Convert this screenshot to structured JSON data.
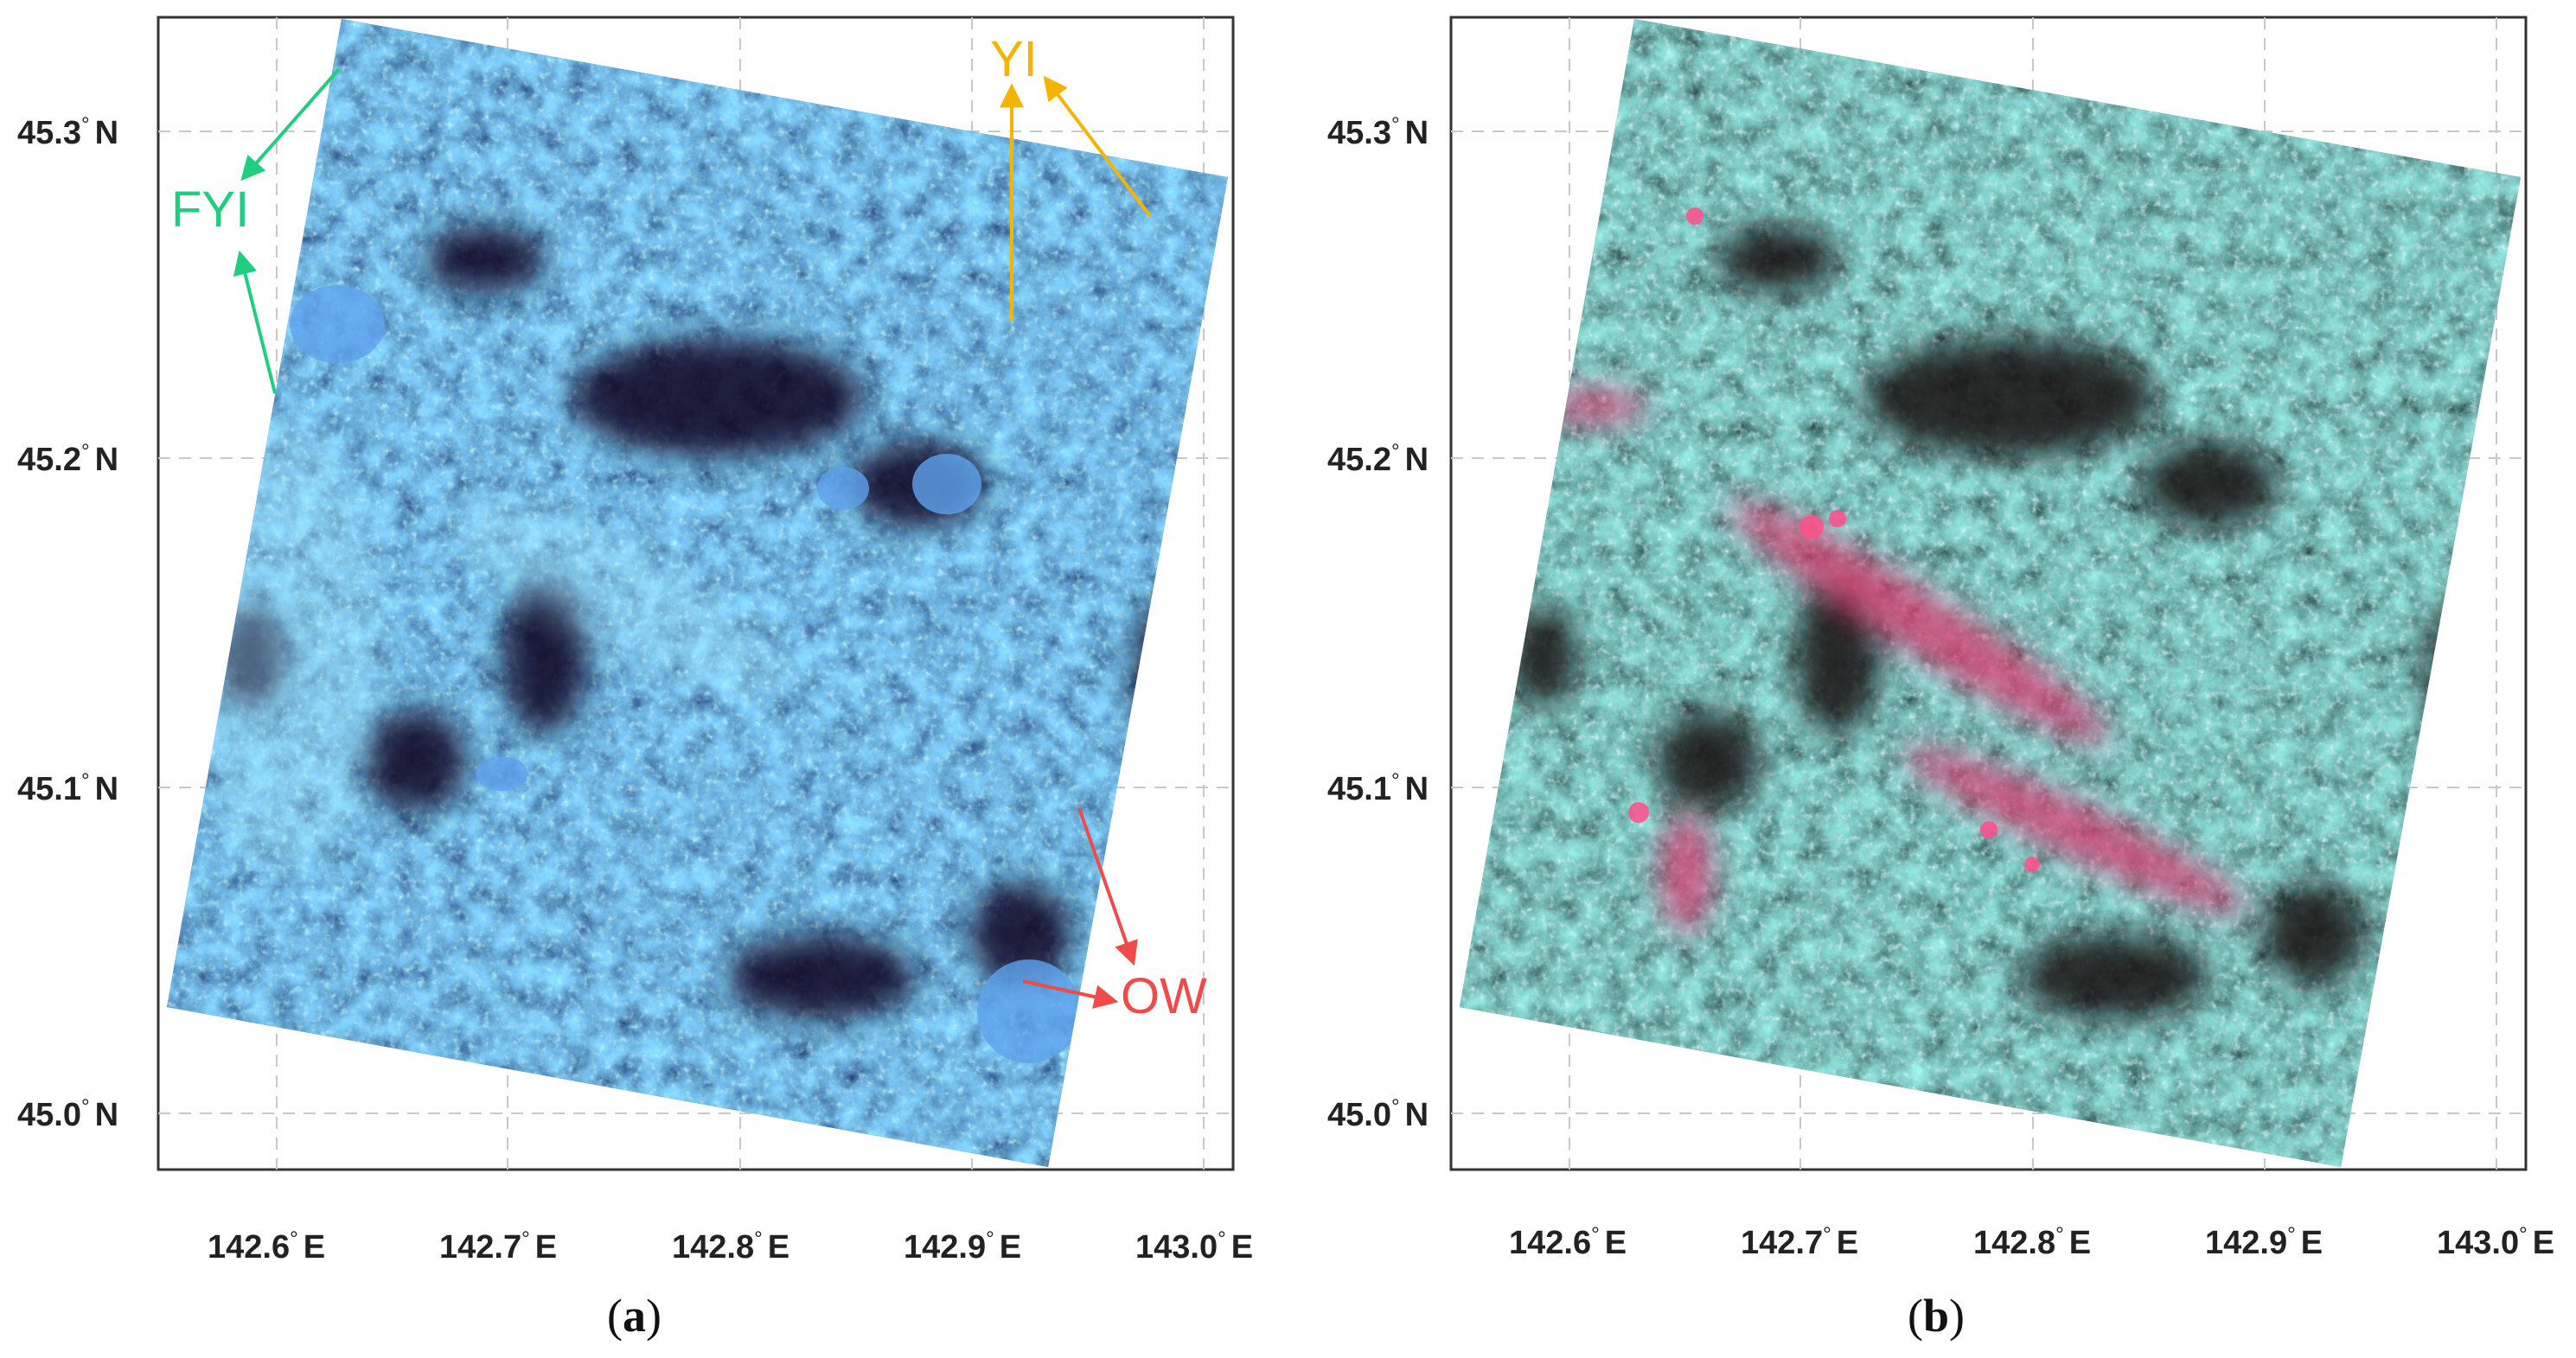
{
  "panels": [
    {
      "id": "a",
      "caption_open": "(",
      "caption_letter": "a",
      "caption_close": ")",
      "lat_labels": [
        {
          "lat": 45.3,
          "text": "45.3",
          "dir": "N"
        },
        {
          "lat": 45.2,
          "text": "45.2",
          "dir": "N"
        },
        {
          "lat": 45.1,
          "text": "45.1",
          "dir": "N"
        },
        {
          "lat": 45.0,
          "text": "45.0",
          "dir": "N"
        }
      ],
      "lon_labels": [
        {
          "lon": 142.6,
          "text": "142.6",
          "dir": "E"
        },
        {
          "lon": 142.7,
          "text": "142.7",
          "dir": "E"
        },
        {
          "lon": 142.8,
          "text": "142.8",
          "dir": "E"
        },
        {
          "lon": 142.9,
          "text": "142.9",
          "dir": "E"
        },
        {
          "lon": 143.0,
          "text": "143.0",
          "dir": "E"
        }
      ],
      "annotations": [
        {
          "label": "FYI",
          "color": "#1fcf7f"
        },
        {
          "label": "YI",
          "color": "#f5b400"
        },
        {
          "label": "OW",
          "color": "#f04a4a"
        }
      ]
    },
    {
      "id": "b",
      "caption_open": "(",
      "caption_letter": "b",
      "caption_close": ")",
      "lat_labels": [
        {
          "lat": 45.3,
          "text": "45.3",
          "dir": "N"
        },
        {
          "lat": 45.2,
          "text": "45.2",
          "dir": "N"
        },
        {
          "lat": 45.1,
          "text": "45.1",
          "dir": "N"
        },
        {
          "lat": 45.0,
          "text": "45.0",
          "dir": "N"
        }
      ],
      "lon_labels": [
        {
          "lon": 142.6,
          "text": "142.6",
          "dir": "E"
        },
        {
          "lon": 142.7,
          "text": "142.7",
          "dir": "E"
        },
        {
          "lon": 142.8,
          "text": "142.8",
          "dir": "E"
        },
        {
          "lon": 142.9,
          "text": "142.9",
          "dir": "E"
        },
        {
          "lon": 143.0,
          "text": "143.0",
          "dir": "E"
        }
      ],
      "annotations": []
    }
  ],
  "degree_symbol": "°",
  "colors": {
    "panel_a_image": "#2f6fd6",
    "panel_b_image": "#3fa89c",
    "water": "#08061a",
    "grid": "#c8c8c8",
    "frame": "#333333"
  }
}
